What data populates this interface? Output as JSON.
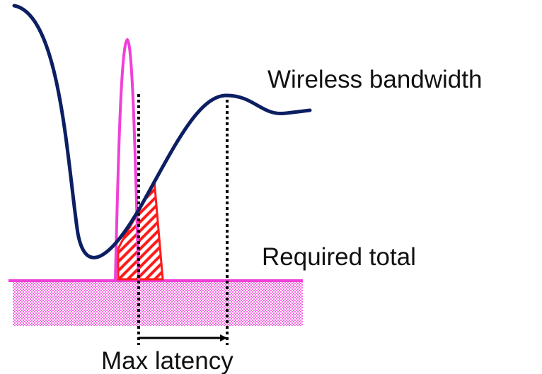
{
  "labels": {
    "wireless_bandwidth": "Wireless bandwidth",
    "required_total": "Required total",
    "max_latency": "Max latency"
  },
  "colors": {
    "bandwidth_curve": "#0d1f63",
    "magenta": "#f040d8",
    "red": "#ff1a1a",
    "dotted_line": "#000000",
    "arrow": "#000000"
  }
}
